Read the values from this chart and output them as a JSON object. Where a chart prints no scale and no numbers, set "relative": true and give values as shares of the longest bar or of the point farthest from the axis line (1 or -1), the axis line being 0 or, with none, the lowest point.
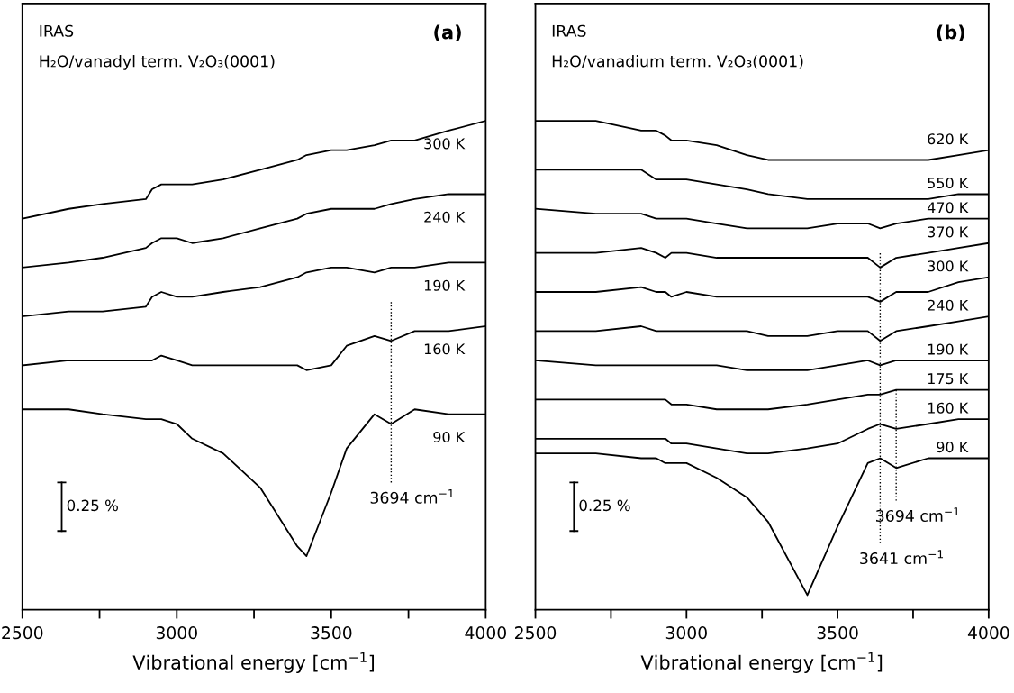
{
  "chart_data": [
    {
      "type": "line",
      "relative": true,
      "title": "IRAS",
      "subtitle": "H₂O/vanadyl term. V₂O₃(0001)",
      "xlabel": "Vibrational energy [cm$^{−1}$]",
      "x": [
        2500,
        2650,
        2760,
        2900,
        2920,
        2950,
        3000,
        3050,
        3150,
        3270,
        3390,
        3420,
        3500,
        3550,
        3640,
        3694,
        3770,
        3880,
        4000
      ],
      "xlim": [
        2500,
        4000
      ],
      "xticks": [
        2500,
        {
          "value": 2750,
          "label": null
        },
        3000,
        {
          "value": 3250,
          "label": null
        },
        3500,
        {
          "value": 3750,
          "label": null
        },
        4000
      ],
      "series": [
        {
          "name": "300 K",
          "color": "#000000",
          "values": [
            0.8,
            0.82,
            0.83,
            0.84,
            0.86,
            0.87,
            0.87,
            0.87,
            0.88,
            0.9,
            0.92,
            0.93,
            0.94,
            0.94,
            0.95,
            0.96,
            0.96,
            0.98,
            1.0
          ]
        },
        {
          "name": "240 K",
          "color": "#000000",
          "values": [
            0.7,
            0.71,
            0.72,
            0.74,
            0.75,
            0.76,
            0.76,
            0.75,
            0.76,
            0.78,
            0.8,
            0.81,
            0.82,
            0.82,
            0.82,
            0.83,
            0.84,
            0.85,
            0.85
          ]
        },
        {
          "name": "190 K",
          "color": "#000000",
          "values": [
            0.6,
            0.61,
            0.61,
            0.62,
            0.64,
            0.65,
            0.64,
            0.64,
            0.65,
            0.66,
            0.68,
            0.69,
            0.7,
            0.7,
            0.69,
            0.7,
            0.7,
            0.71,
            0.71
          ]
        },
        {
          "name": "160 K",
          "color": "#000000",
          "values": [
            0.5,
            0.51,
            0.51,
            0.51,
            0.51,
            0.52,
            0.51,
            0.5,
            0.5,
            0.5,
            0.5,
            0.49,
            0.5,
            0.54,
            0.56,
            0.55,
            0.57,
            0.57,
            0.58
          ]
        },
        {
          "name": "90 K",
          "color": "#000000",
          "values": [
            0.41,
            0.41,
            0.4,
            0.39,
            0.39,
            0.39,
            0.38,
            0.35,
            0.32,
            0.25,
            0.13,
            0.11,
            0.24,
            0.33,
            0.4,
            0.38,
            0.41,
            0.4,
            0.4
          ]
        }
      ],
      "ref_lines": [
        {
          "axis": "x",
          "value": 3694,
          "label": "3694 cm$^{−1}$",
          "line_style": "dotted"
        }
      ],
      "annotations": [
        "(a)",
        "0.25 %"
      ]
    },
    {
      "type": "line",
      "relative": true,
      "title": "IRAS",
      "subtitle": "H₂O/vanadium term. V₂O₃(0001)",
      "xlabel": "Vibrational energy [cm$^{−1}$]",
      "x": [
        2500,
        2700,
        2850,
        2900,
        2930,
        2950,
        3000,
        3100,
        3200,
        3270,
        3400,
        3500,
        3600,
        3641,
        3694,
        3800,
        3900,
        4000
      ],
      "xlim": [
        2500,
        4000
      ],
      "xticks": [
        2500,
        {
          "value": 2750,
          "label": null
        },
        3000,
        {
          "value": 3250,
          "label": null
        },
        3500,
        {
          "value": 3750,
          "label": null
        },
        4000
      ],
      "series": [
        {
          "name": "620 K",
          "color": "#000000",
          "values": [
            1.0,
            1.0,
            0.98,
            0.98,
            0.97,
            0.96,
            0.96,
            0.95,
            0.93,
            0.92,
            0.92,
            0.92,
            0.92,
            0.92,
            0.92,
            0.92,
            0.93,
            0.94
          ]
        },
        {
          "name": "550 K",
          "color": "#000000",
          "values": [
            0.9,
            0.9,
            0.9,
            0.88,
            0.88,
            0.88,
            0.88,
            0.87,
            0.86,
            0.85,
            0.84,
            0.84,
            0.84,
            0.84,
            0.84,
            0.84,
            0.85,
            0.85
          ]
        },
        {
          "name": "470 K",
          "color": "#000000",
          "values": [
            0.82,
            0.81,
            0.81,
            0.8,
            0.8,
            0.8,
            0.8,
            0.79,
            0.78,
            0.78,
            0.78,
            0.79,
            0.79,
            0.78,
            0.79,
            0.8,
            0.8,
            0.8
          ]
        },
        {
          "name": "370 K",
          "color": "#000000",
          "values": [
            0.73,
            0.73,
            0.74,
            0.73,
            0.72,
            0.73,
            0.73,
            0.72,
            0.72,
            0.72,
            0.72,
            0.72,
            0.72,
            0.7,
            0.72,
            0.73,
            0.74,
            0.75
          ]
        },
        {
          "name": "300 K",
          "color": "#000000",
          "values": [
            0.65,
            0.65,
            0.66,
            0.65,
            0.65,
            0.64,
            0.65,
            0.64,
            0.64,
            0.64,
            0.64,
            0.64,
            0.64,
            0.63,
            0.65,
            0.65,
            0.67,
            0.68
          ]
        },
        {
          "name": "240 K",
          "color": "#000000",
          "values": [
            0.57,
            0.57,
            0.58,
            0.57,
            0.57,
            0.57,
            0.57,
            0.57,
            0.57,
            0.56,
            0.56,
            0.57,
            0.57,
            0.55,
            0.57,
            0.58,
            0.59,
            0.6
          ]
        },
        {
          "name": "190 K",
          "color": "#000000",
          "values": [
            0.51,
            0.5,
            0.5,
            0.5,
            0.5,
            0.5,
            0.5,
            0.5,
            0.49,
            0.49,
            0.49,
            0.5,
            0.51,
            0.5,
            0.51,
            0.51,
            0.51,
            0.51
          ]
        },
        {
          "name": "175 K",
          "color": "#000000",
          "values": [
            0.43,
            0.43,
            0.43,
            0.43,
            0.43,
            0.42,
            0.42,
            0.41,
            0.41,
            0.41,
            0.42,
            0.43,
            0.44,
            0.44,
            0.45,
            0.45,
            0.45,
            0.45
          ]
        },
        {
          "name": "160 K",
          "color": "#000000",
          "values": [
            0.35,
            0.35,
            0.35,
            0.35,
            0.35,
            0.34,
            0.34,
            0.33,
            0.32,
            0.32,
            0.33,
            0.34,
            0.37,
            0.38,
            0.37,
            0.38,
            0.39,
            0.39
          ]
        },
        {
          "name": "90 K",
          "color": "#000000",
          "values": [
            0.32,
            0.32,
            0.31,
            0.31,
            0.3,
            0.3,
            0.3,
            0.27,
            0.23,
            0.18,
            0.03,
            0.17,
            0.3,
            0.31,
            0.29,
            0.31,
            0.31,
            0.31
          ]
        }
      ],
      "ref_lines": [
        {
          "axis": "x",
          "value": 3641,
          "label": "3641 cm$^{−1}$",
          "line_style": "dotted"
        },
        {
          "axis": "x",
          "value": 3694,
          "label": "3694 cm$^{−1}$",
          "line_style": "dotted"
        }
      ],
      "annotations": [
        "(b)",
        "0.25 %"
      ]
    }
  ]
}
